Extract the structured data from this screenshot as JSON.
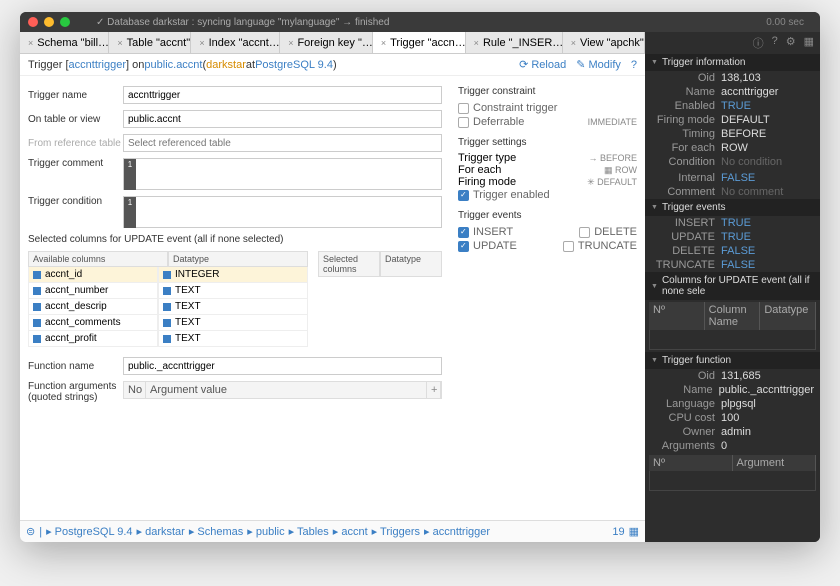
{
  "titlebar": {
    "dots": [
      "#ff5f57",
      "#febc2e",
      "#28c840"
    ],
    "status": "✓  Database darkstar : syncing language \"mylanguage\" → finished",
    "time": "0.00 sec"
  },
  "tabs": [
    {
      "label": "Schema \"bill…",
      "active": false
    },
    {
      "label": "Table \"accnt\"",
      "active": false
    },
    {
      "label": "Index \"accnt…",
      "active": false
    },
    {
      "label": "Foreign key \"…",
      "active": false
    },
    {
      "label": "Trigger \"accn…",
      "active": true
    },
    {
      "label": "Rule \"_INSER…",
      "active": false
    },
    {
      "label": "View \"apchk\"",
      "active": false
    }
  ],
  "crumb": {
    "pre": "Trigger [ ",
    "name": "accnttrigger",
    "mid": " ] on ",
    "table": "public.accnt",
    "open": " (",
    "db": "darkstar",
    "at": " at ",
    "srv": "PostgreSQL 9.4",
    "close": ")",
    "reload": "⟳ Reload",
    "modify": "✎ Modify",
    "help": "?"
  },
  "form": {
    "trigger_name_lbl": "Trigger name",
    "trigger_name": "accnttrigger",
    "on_table_lbl": "On table or view",
    "on_table": "public.accnt",
    "from_ref_lbl": "From reference table",
    "from_ref_ph": "Select referenced table",
    "comment_lbl": "Trigger comment",
    "cond_lbl": "Trigger condition",
    "sel_cols_hdr": "Selected columns for UPDATE event (all if none selected)",
    "avail_hdr": "Available columns",
    "dt_hdr": "Datatype",
    "cols": [
      {
        "name": "accnt_id",
        "type": "INTEGER",
        "hl": true
      },
      {
        "name": "accnt_number",
        "type": "TEXT",
        "hl": false
      },
      {
        "name": "accnt_descrip",
        "type": "TEXT",
        "hl": false
      },
      {
        "name": "accnt_comments",
        "type": "TEXT",
        "hl": false
      },
      {
        "name": "accnt_profit",
        "type": "TEXT",
        "hl": false
      }
    ],
    "selcol_hdr": "Selected columns",
    "seldt_hdr": "Datatype",
    "fn_lbl": "Function name",
    "fn_name": "public._accnttrigger",
    "args_lbl": "Function arguments (quoted strings)",
    "args_no": "No",
    "args_val": "Argument value"
  },
  "right": {
    "constraint": {
      "title": "Trigger constraint",
      "constraint": "Constraint trigger",
      "deferrable": "Deferrable",
      "immediate": "IMMEDIATE"
    },
    "settings": {
      "title": "Trigger settings",
      "type_l": "Trigger type",
      "type_v": "→ BEFORE",
      "each_l": "For each",
      "each_v": "▦ ROW",
      "mode_l": "Firing mode",
      "mode_v": "✳ DEFAULT",
      "enabled": "Trigger enabled"
    },
    "events": {
      "title": "Trigger events",
      "insert": "INSERT",
      "delete": "DELETE",
      "update": "UPDATE",
      "truncate": "TRUNCATE"
    }
  },
  "bc": [
    "PostgreSQL 9.4",
    "darkstar",
    "Schemas",
    "public",
    "Tables",
    "accnt",
    "Triggers",
    "accnttrigger"
  ],
  "bc_count": "19",
  "side": {
    "info": {
      "title": "Trigger information",
      "rows": [
        [
          "Oid",
          "138,103",
          ""
        ],
        [
          "Name",
          "accnttrigger",
          ""
        ],
        [
          "Enabled",
          "TRUE",
          "blue"
        ],
        [
          "Firing mode",
          "DEFAULT",
          ""
        ],
        [
          "Timing",
          "BEFORE",
          ""
        ],
        [
          "For each",
          "ROW",
          ""
        ],
        [
          "Condition",
          "No condition",
          "dim"
        ],
        [
          "",
          ""
        ],
        [
          "Internal",
          "FALSE",
          "blue"
        ],
        [
          "Comment",
          "No comment",
          "dim"
        ]
      ]
    },
    "events": {
      "title": "Trigger events",
      "rows": [
        [
          "INSERT",
          "TRUE",
          "blue"
        ],
        [
          "UPDATE",
          "TRUE",
          "blue"
        ],
        [
          "DELETE",
          "FALSE",
          "blue"
        ],
        [
          "TRUNCATE",
          "FALSE",
          "blue"
        ]
      ]
    },
    "upd": {
      "title": "Columns for UPDATE event (all if none sele",
      "cols": [
        "Nº",
        "Column Name",
        "Datatype"
      ]
    },
    "fn": {
      "title": "Trigger function",
      "rows": [
        [
          "Oid",
          "131,685",
          ""
        ],
        [
          "Name",
          "public._accnttrigger",
          ""
        ],
        [
          "Language",
          "plpgsql",
          ""
        ],
        [
          "CPU cost",
          "100",
          ""
        ],
        [
          "Owner",
          "admin",
          ""
        ],
        [
          "Arguments",
          "0",
          ""
        ]
      ],
      "cols": [
        "Nº",
        "Argument"
      ]
    }
  }
}
